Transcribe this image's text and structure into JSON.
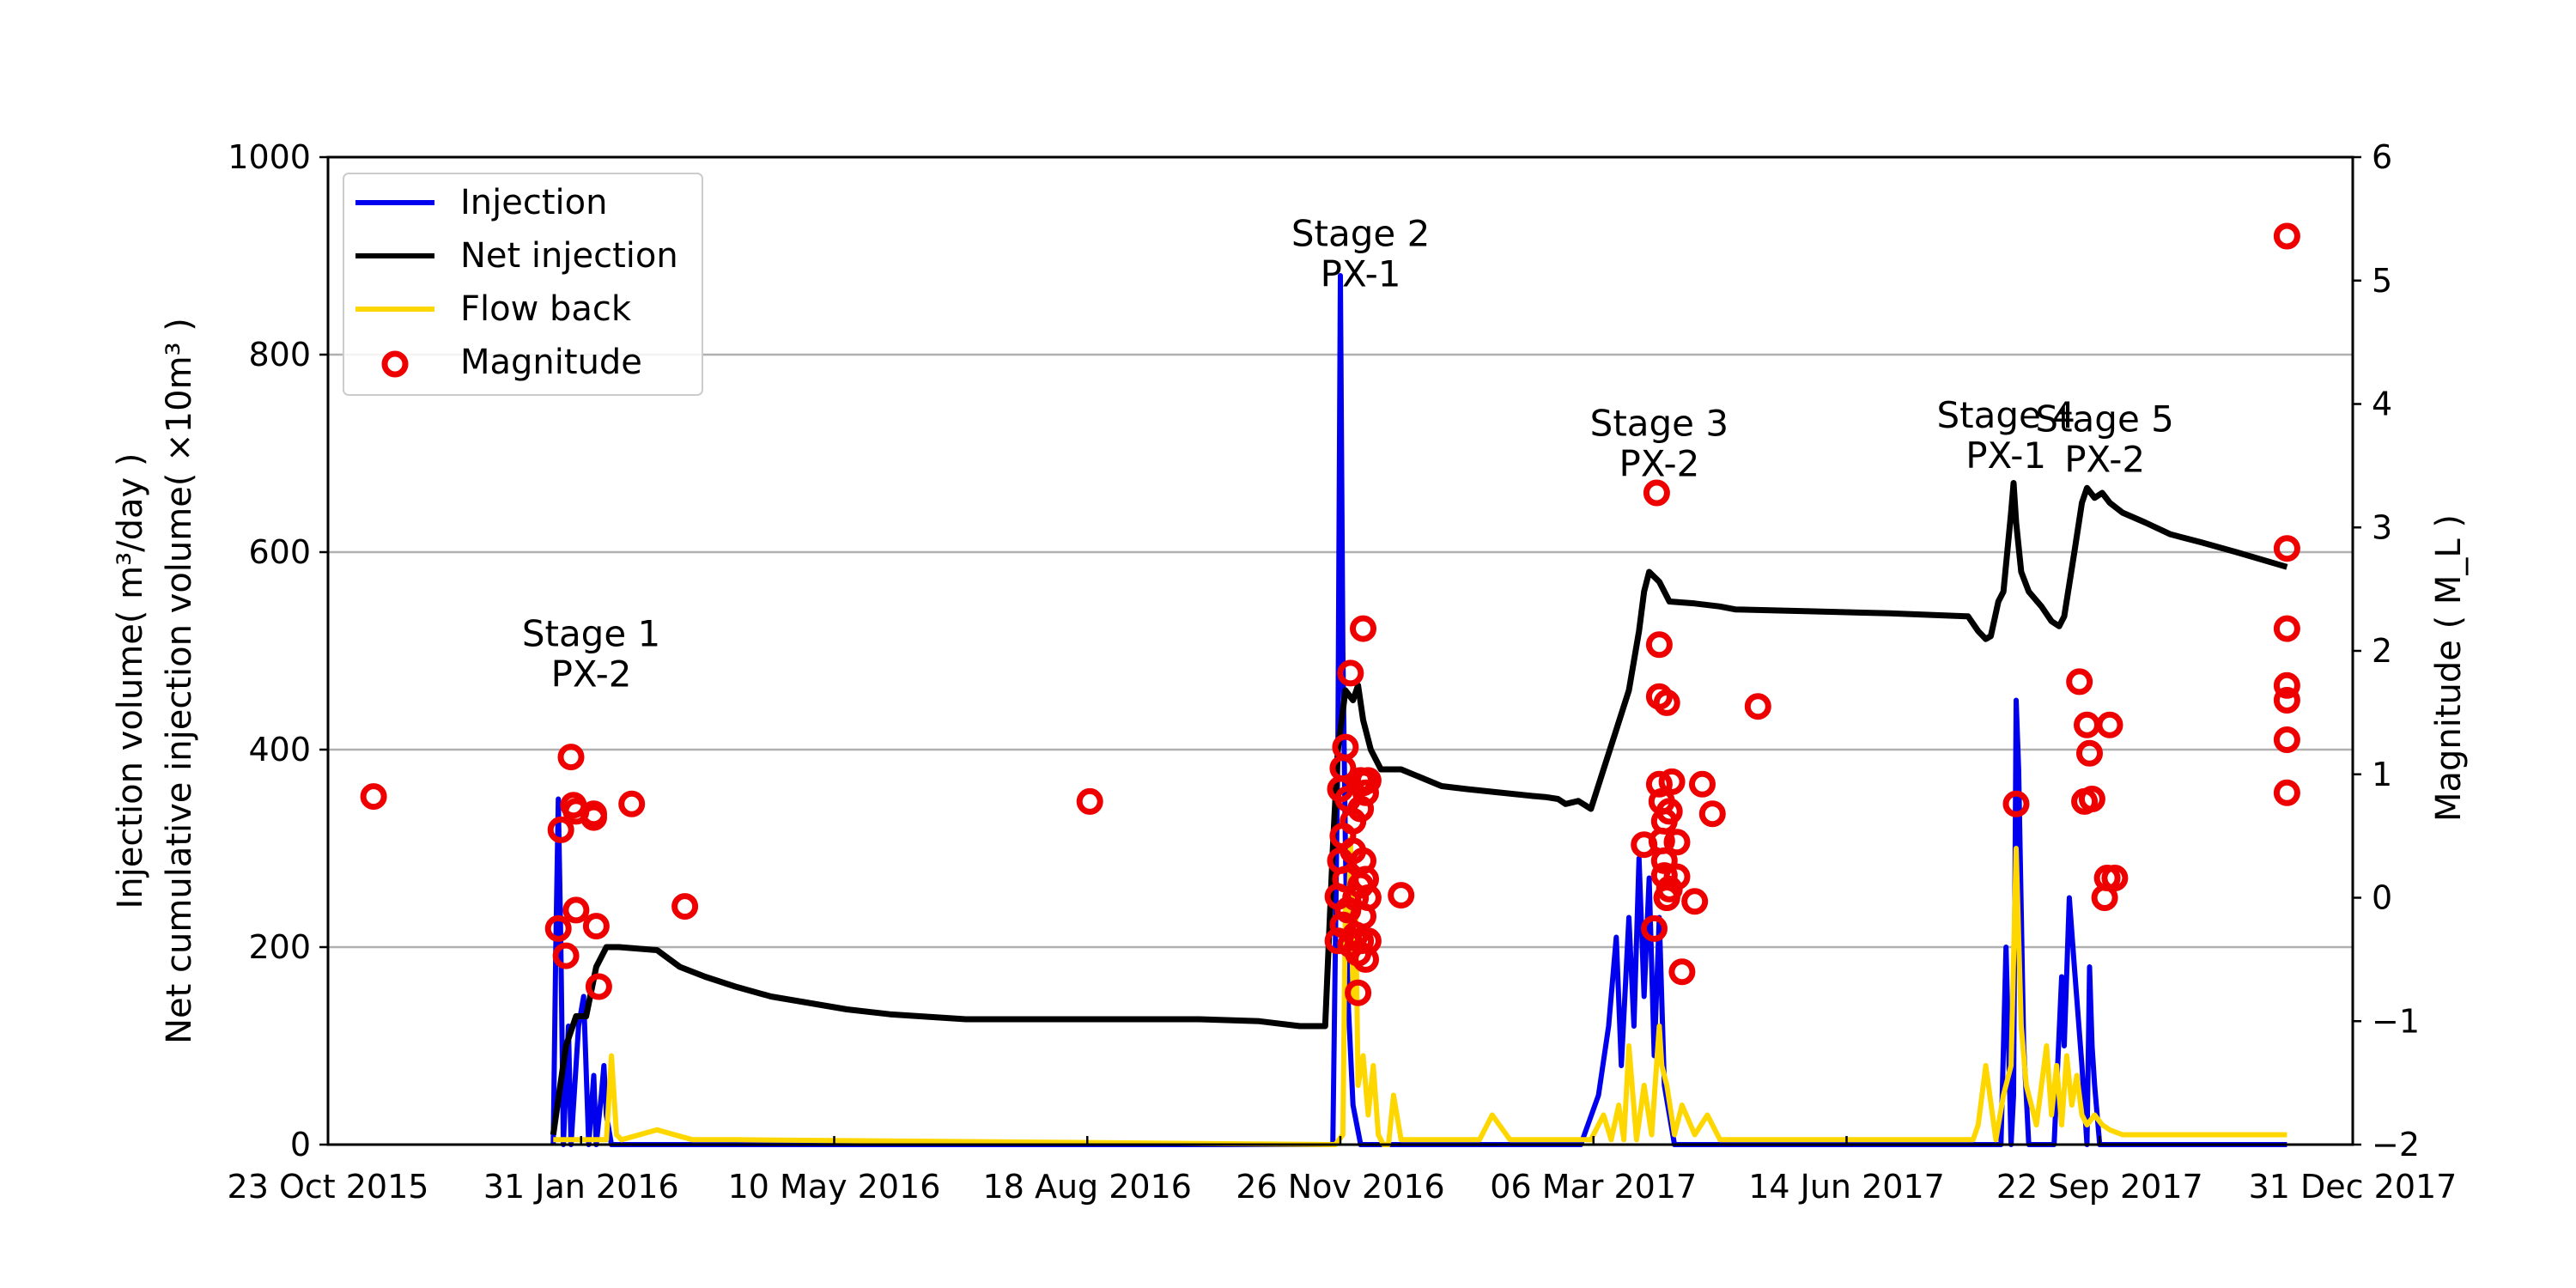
{
  "chart_data": {
    "type": "line",
    "y_axis_left": {
      "label_line1": "Injection volume( m³/day )",
      "label_line2": "Net cumulative injection volume( ×10m³ )",
      "ylim": [
        0,
        1000
      ],
      "ticks": [
        0,
        200,
        400,
        600,
        800,
        1000
      ]
    },
    "y_axis_right": {
      "label": "Magnitude ( M_L )",
      "ylim": [
        -2,
        6
      ],
      "ticks": [
        -2,
        -1,
        0,
        1,
        2,
        3,
        4,
        5,
        6
      ],
      "tick_labels": [
        "−2",
        "−1",
        "0",
        "1",
        "2",
        "3",
        "4",
        "5",
        "6"
      ]
    },
    "x_axis": {
      "range": [
        "2015-10-23",
        "2017-12-31"
      ],
      "ticks": [
        "2015-10-23",
        "2016-01-31",
        "2016-05-10",
        "2016-08-18",
        "2016-11-26",
        "2017-03-06",
        "2017-06-14",
        "2017-09-22",
        "2017-12-31"
      ],
      "tick_labels": [
        "23 Oct 2015",
        "31 Jan 2016",
        "10 May 2016",
        "18 Aug 2016",
        "26 Nov 2016",
        "06 Mar 2017",
        "14 Jun 2017",
        "22 Sep 2017",
        "31 Dec 2017"
      ]
    },
    "grid": "horizontal",
    "legend_position": "top-left",
    "legend": [
      {
        "label": "Injection",
        "color": "#0000ee",
        "kind": "line"
      },
      {
        "label": "Net injection",
        "color": "#000000",
        "kind": "line"
      },
      {
        "label": "Flow back",
        "color": "#ffd700",
        "kind": "line"
      },
      {
        "label": "Magnitude",
        "color": "#ee0000",
        "kind": "marker"
      }
    ],
    "annotations": [
      {
        "line1": "Stage 1",
        "line2": "PX-2",
        "x": "2016-02-04",
        "y": 505
      },
      {
        "line1": "Stage 2",
        "line2": "PX-1",
        "x": "2016-12-04",
        "y": 910
      },
      {
        "line1": "Stage 3",
        "line2": "PX-2",
        "x": "2017-04-01",
        "y": 718
      },
      {
        "line1": "Stage 4",
        "line2": "PX-1",
        "x": "2017-08-16",
        "y": 726
      },
      {
        "line1": "Stage 5",
        "line2": "PX-2",
        "x": "2017-09-24",
        "y": 722
      }
    ],
    "series": [
      {
        "name": "Injection",
        "axis": "left",
        "color": "#0000ee",
        "x": [
          "2016-01-20",
          "2016-01-21",
          "2016-01-22",
          "2016-01-23",
          "2016-01-24",
          "2016-01-26",
          "2016-01-27",
          "2016-01-30",
          "2016-02-01",
          "2016-02-03",
          "2016-02-05",
          "2016-02-06",
          "2016-02-08",
          "2016-02-09",
          "2016-02-10",
          "2016-02-12",
          "2016-11-20",
          "2016-11-23",
          "2016-11-25",
          "2016-11-26",
          "2016-11-27",
          "2016-11-28",
          "2016-11-29",
          "2016-12-01",
          "2016-12-04",
          "2016-12-06",
          "2016-12-10",
          "2017-03-01",
          "2017-03-08",
          "2017-03-12",
          "2017-03-15",
          "2017-03-17",
          "2017-03-20",
          "2017-03-22",
          "2017-03-24",
          "2017-03-26",
          "2017-03-28",
          "2017-03-30",
          "2017-04-01",
          "2017-04-03",
          "2017-04-05",
          "2017-04-07",
          "2017-08-10",
          "2017-08-14",
          "2017-08-16",
          "2017-08-18",
          "2017-08-19",
          "2017-08-20",
          "2017-08-21",
          "2017-08-23",
          "2017-08-25",
          "2017-09-04",
          "2017-09-07",
          "2017-09-08",
          "2017-09-10",
          "2017-09-12",
          "2017-09-15",
          "2017-09-17",
          "2017-09-18",
          "2017-09-19",
          "2017-09-20",
          "2017-09-22",
          "2017-12-05"
        ],
        "y": [
          0,
          200,
          350,
          200,
          0,
          120,
          0,
          120,
          150,
          0,
          70,
          0,
          50,
          80,
          30,
          0,
          0,
          0,
          400,
          880,
          500,
          300,
          150,
          40,
          0,
          0,
          0,
          0,
          50,
          120,
          210,
          80,
          230,
          120,
          290,
          150,
          270,
          90,
          230,
          60,
          30,
          0,
          0,
          0,
          200,
          0,
          50,
          450,
          380,
          100,
          0,
          0,
          170,
          100,
          250,
          180,
          80,
          0,
          180,
          100,
          60,
          0,
          0
        ]
      },
      {
        "name": "Flow back",
        "axis": "left",
        "color": "#ffd700",
        "x": [
          "2016-01-20",
          "2016-02-10",
          "2016-02-12",
          "2016-02-14",
          "2016-02-16",
          "2016-03-01",
          "2016-03-15",
          "2016-04-01",
          "2016-11-24",
          "2016-11-27",
          "2016-11-28",
          "2016-11-29",
          "2016-11-30",
          "2016-12-01",
          "2016-12-02",
          "2016-12-03",
          "2016-12-05",
          "2016-12-07",
          "2016-12-09",
          "2016-12-11",
          "2016-12-13",
          "2016-12-15",
          "2016-12-17",
          "2016-12-20",
          "2016-12-25",
          "2017-01-01",
          "2017-01-05",
          "2017-01-10",
          "2017-01-20",
          "2017-01-25",
          "2017-02-01",
          "2017-02-05",
          "2017-02-10",
          "2017-02-20",
          "2017-02-25",
          "2017-03-01",
          "2017-03-05",
          "2017-03-10",
          "2017-03-13",
          "2017-03-16",
          "2017-03-18",
          "2017-03-20",
          "2017-03-23",
          "2017-03-26",
          "2017-03-29",
          "2017-04-01",
          "2017-04-02",
          "2017-04-04",
          "2017-04-07",
          "2017-04-10",
          "2017-04-15",
          "2017-04-20",
          "2017-04-25",
          "2017-05-01",
          "2017-05-10",
          "2017-06-01",
          "2017-07-01",
          "2017-07-25",
          "2017-08-01",
          "2017-08-03",
          "2017-08-05",
          "2017-08-08",
          "2017-08-12",
          "2017-08-15",
          "2017-08-18",
          "2017-08-20",
          "2017-08-22",
          "2017-08-24",
          "2017-08-26",
          "2017-08-28",
          "2017-08-30",
          "2017-09-01",
          "2017-09-03",
          "2017-09-05",
          "2017-09-07",
          "2017-09-09",
          "2017-09-11",
          "2017-09-13",
          "2017-09-15",
          "2017-09-17",
          "2017-09-20",
          "2017-09-23",
          "2017-09-26",
          "2017-10-01",
          "2017-10-10",
          "2017-10-20",
          "2017-11-01",
          "2017-11-15",
          "2017-12-05"
        ],
        "y": [
          5,
          5,
          90,
          10,
          5,
          15,
          5,
          5,
          0,
          10,
          250,
          200,
          310,
          150,
          250,
          60,
          90,
          30,
          80,
          10,
          0,
          0,
          50,
          5,
          5,
          5,
          5,
          5,
          5,
          30,
          5,
          5,
          5,
          5,
          5,
          5,
          5,
          30,
          5,
          40,
          5,
          100,
          5,
          60,
          10,
          120,
          80,
          60,
          10,
          40,
          10,
          30,
          5,
          5,
          5,
          5,
          5,
          5,
          5,
          5,
          20,
          80,
          5,
          50,
          80,
          300,
          120,
          60,
          40,
          20,
          60,
          100,
          30,
          80,
          20,
          90,
          40,
          70,
          30,
          20,
          30,
          20,
          15,
          10,
          10,
          10,
          10,
          10,
          10
        ]
      },
      {
        "name": "Net injection",
        "axis": "left",
        "color": "#000000",
        "x": [
          "2016-01-20",
          "2016-01-25",
          "2016-01-29",
          "2016-02-02",
          "2016-02-06",
          "2016-02-10",
          "2016-02-15",
          "2016-03-01",
          "2016-03-10",
          "2016-03-20",
          "2016-04-01",
          "2016-04-15",
          "2016-05-01",
          "2016-05-15",
          "2016-06-01",
          "2016-07-01",
          "2016-08-01",
          "2016-09-01",
          "2016-10-01",
          "2016-10-25",
          "2016-11-10",
          "2016-11-20",
          "2016-11-23",
          "2016-11-25",
          "2016-11-28",
          "2016-12-01",
          "2016-12-03",
          "2016-12-05",
          "2016-12-08",
          "2016-12-12",
          "2016-12-20",
          "2017-01-05",
          "2017-01-15",
          "2017-02-10",
          "2017-02-15",
          "2017-02-20",
          "2017-02-23",
          "2017-02-28",
          "2017-03-05",
          "2017-03-10",
          "2017-03-15",
          "2017-03-20",
          "2017-03-24",
          "2017-03-26",
          "2017-03-28",
          "2017-04-01",
          "2017-04-05",
          "2017-04-15",
          "2017-04-25",
          "2017-05-01",
          "2017-06-01",
          "2017-07-01",
          "2017-08-01",
          "2017-08-05",
          "2017-08-08",
          "2017-08-10",
          "2017-08-13",
          "2017-08-15",
          "2017-08-18",
          "2017-08-19",
          "2017-08-20",
          "2017-08-22",
          "2017-08-25",
          "2017-08-30",
          "2017-09-03",
          "2017-09-06",
          "2017-09-08",
          "2017-09-12",
          "2017-09-15",
          "2017-09-17",
          "2017-09-20",
          "2017-09-23",
          "2017-09-26",
          "2017-10-01",
          "2017-10-10",
          "2017-10-20",
          "2017-11-01",
          "2017-11-15",
          "2017-12-05"
        ],
        "y": [
          10,
          100,
          130,
          130,
          180,
          200,
          200,
          197,
          180,
          170,
          160,
          150,
          143,
          137,
          132,
          127,
          127,
          127,
          127,
          125,
          120,
          120,
          300,
          400,
          460,
          450,
          465,
          430,
          400,
          380,
          380,
          363,
          360,
          353,
          352,
          350,
          345,
          348,
          340,
          380,
          420,
          460,
          520,
          560,
          580,
          570,
          550,
          548,
          545,
          542,
          540,
          538,
          535,
          520,
          512,
          515,
          550,
          560,
          640,
          670,
          630,
          580,
          560,
          545,
          530,
          525,
          535,
          600,
          650,
          665,
          655,
          660,
          650,
          640,
          630,
          618,
          610,
          600,
          585
        ]
      },
      {
        "name": "Magnitude",
        "axis": "right",
        "color": "#ee0000",
        "x": [
          "2015-11-10",
          "2016-01-22",
          "2016-01-23",
          "2016-01-25",
          "2016-01-27",
          "2016-01-28",
          "2016-01-29",
          "2016-01-29",
          "2016-02-05",
          "2016-02-05",
          "2016-02-06",
          "2016-02-07",
          "2016-02-20",
          "2016-03-12",
          "2016-08-19",
          "2016-11-25",
          "2016-11-25",
          "2016-11-26",
          "2016-11-26",
          "2016-11-27",
          "2016-11-27",
          "2016-11-27",
          "2016-11-28",
          "2016-11-28",
          "2016-11-29",
          "2016-11-29",
          "2016-11-30",
          "2016-11-30",
          "2016-12-01",
          "2016-12-01",
          "2016-12-02",
          "2016-12-02",
          "2016-12-03",
          "2016-12-03",
          "2016-12-04",
          "2016-12-04",
          "2016-12-04",
          "2016-12-04",
          "2016-12-05",
          "2016-12-05",
          "2016-12-05",
          "2016-12-05",
          "2016-12-06",
          "2016-12-06",
          "2016-12-06",
          "2016-12-07",
          "2016-12-07",
          "2016-12-07",
          "2016-12-20",
          "2017-03-26",
          "2017-03-30",
          "2017-03-31",
          "2017-04-01",
          "2017-04-01",
          "2017-04-01",
          "2017-04-02",
          "2017-04-02",
          "2017-04-03",
          "2017-04-03",
          "2017-04-03",
          "2017-04-04",
          "2017-04-04",
          "2017-04-04",
          "2017-04-05",
          "2017-04-05",
          "2017-04-06",
          "2017-04-08",
          "2017-04-08",
          "2017-04-10",
          "2017-04-15",
          "2017-04-18",
          "2017-04-22",
          "2017-05-10",
          "2017-08-20",
          "2017-09-14",
          "2017-09-16",
          "2017-09-17",
          "2017-09-18",
          "2017-09-19",
          "2017-09-24",
          "2017-09-25",
          "2017-09-26",
          "2017-09-28",
          "2017-12-05",
          "2017-12-05",
          "2017-12-05",
          "2017-12-05",
          "2017-12-05",
          "2017-12-05",
          "2017-12-05"
        ],
        "y": [
          0.82,
          -0.25,
          0.55,
          -0.47,
          1.14,
          0.75,
          0.7,
          -0.1,
          0.65,
          0.68,
          -0.23,
          -0.72,
          0.76,
          -0.07,
          0.78,
          -0.35,
          0.01,
          0.3,
          0.88,
          1.05,
          0.5,
          -0.22,
          0.15,
          1.22,
          -0.1,
          0.8,
          1.82,
          -0.38,
          0.62,
          0.38,
          0.0,
          -0.3,
          -0.45,
          -0.77,
          0.95,
          0.72,
          -0.35,
          0.1,
          2.18,
          0.93,
          -0.15,
          0.3,
          -0.5,
          0.15,
          0.85,
          0.95,
          -0.35,
          0.0,
          0.02,
          0.43,
          -0.25,
          3.28,
          2.05,
          1.63,
          0.92,
          0.78,
          0.46,
          0.3,
          0.18,
          0.62,
          1.58,
          0.0,
          0.0,
          0.7,
          0.07,
          0.94,
          0.45,
          0.17,
          -0.6,
          -0.03,
          0.92,
          0.68,
          1.55,
          0.76,
          1.75,
          0.78,
          1.4,
          1.17,
          0.8,
          0.0,
          0.16,
          1.4,
          0.16,
          5.36,
          2.83,
          2.18,
          1.72,
          1.6,
          1.28,
          0.85
        ]
      }
    ]
  }
}
